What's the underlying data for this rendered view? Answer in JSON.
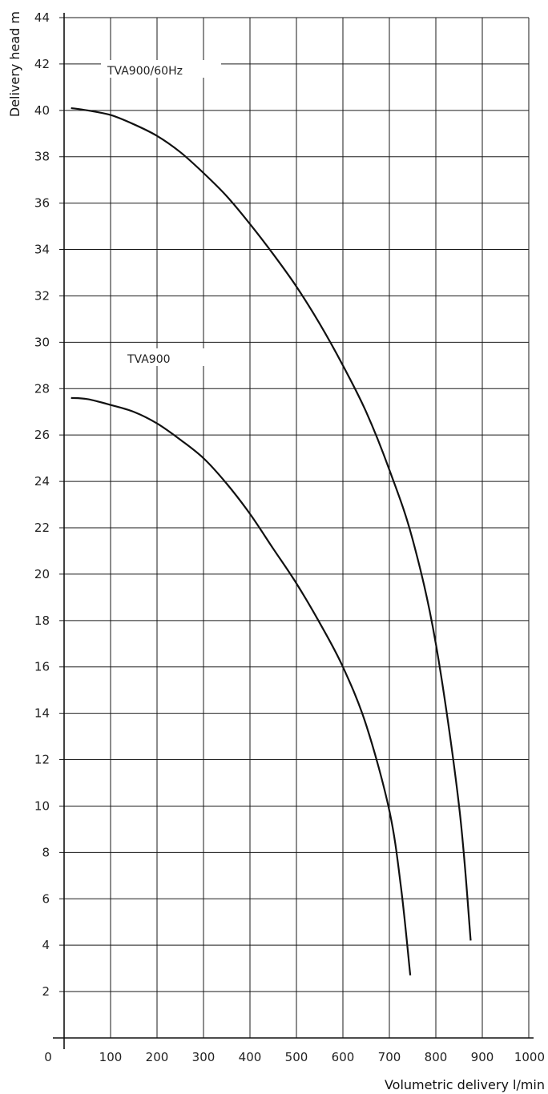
{
  "chart_data": {
    "type": "line",
    "title": "",
    "xlabel": "Volumetric delivery l/min",
    "ylabel": "Delivery head m",
    "xlim": [
      0,
      1000
    ],
    "ylim": [
      0,
      44
    ],
    "grid": true,
    "x_ticks": [
      0,
      100,
      200,
      300,
      400,
      500,
      600,
      700,
      800,
      900,
      1000
    ],
    "y_ticks": [
      2,
      4,
      6,
      8,
      10,
      12,
      14,
      16,
      18,
      20,
      22,
      24,
      26,
      28,
      30,
      32,
      34,
      36,
      38,
      40,
      42,
      44
    ],
    "series": [
      {
        "name": "TVA900/60Hz",
        "x": [
          15,
          50,
          100,
          150,
          200,
          250,
          300,
          350,
          400,
          450,
          500,
          550,
          600,
          650,
          700,
          750,
          800,
          850,
          875
        ],
        "y": [
          40.1,
          40.0,
          39.8,
          39.4,
          38.9,
          38.2,
          37.3,
          36.3,
          35.1,
          33.8,
          32.4,
          30.8,
          29.0,
          27.0,
          24.5,
          21.5,
          17.0,
          10.0,
          4.2
        ]
      },
      {
        "name": "TVA900",
        "x": [
          15,
          50,
          100,
          150,
          200,
          250,
          300,
          350,
          400,
          450,
          500,
          550,
          600,
          650,
          700,
          725,
          745
        ],
        "y": [
          27.6,
          27.55,
          27.3,
          27.0,
          26.5,
          25.8,
          25.0,
          23.9,
          22.6,
          21.1,
          19.6,
          17.9,
          16.0,
          13.5,
          9.8,
          6.5,
          2.7
        ]
      }
    ]
  }
}
